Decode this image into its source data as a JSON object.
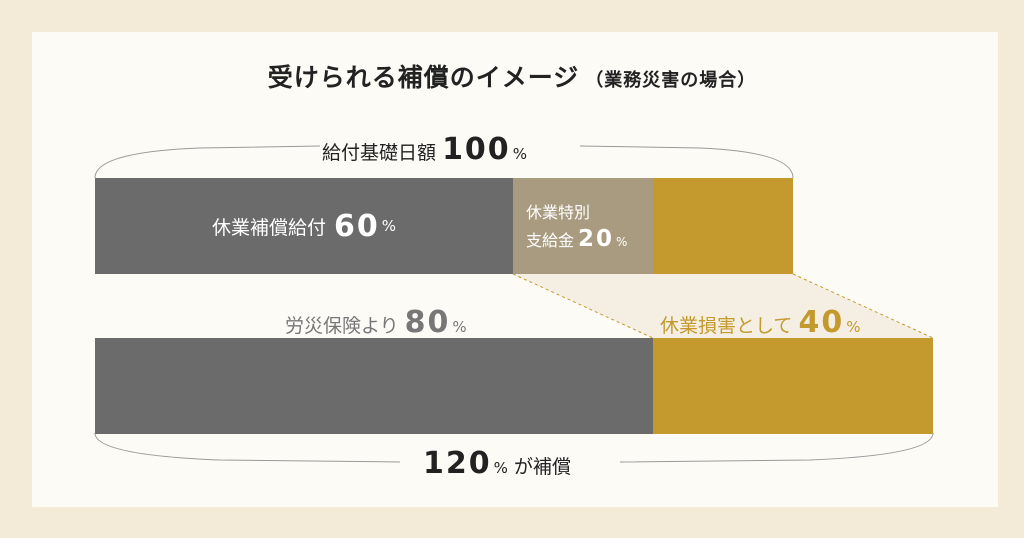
{
  "title": "受けられる補償のイメージ",
  "title_sub": "（業務災害の場合）",
  "base": {
    "label": "給付基礎日額",
    "value": "100",
    "unit": "%"
  },
  "top_bar": {
    "segments": [
      {
        "label": "休業補償給付",
        "value": "60",
        "unit": "%",
        "share": 60,
        "color": "#6b6b6b"
      },
      {
        "label_line1": "休業特別",
        "label_line2": "支給金",
        "value": "20",
        "unit": "%",
        "share": 20,
        "color": "#a89b80"
      },
      {
        "share": 20,
        "color": "#c49a2e"
      }
    ]
  },
  "bottom_bar": {
    "segments": [
      {
        "label": "労災保険より",
        "value": "80",
        "unit": "%",
        "share": 80,
        "color": "#6b6b6b"
      },
      {
        "label": "休業損害として",
        "value": "40",
        "unit": "%",
        "share": 40,
        "color": "#c49a2e"
      }
    ]
  },
  "total": {
    "value": "120",
    "unit": "%",
    "label": "が補償"
  },
  "colors": {
    "background": "#f3ead8",
    "panel": "#fdfbf6",
    "gray": "#6b6b6b",
    "taupe": "#a89b80",
    "gold": "#c49a2e",
    "gold_text": "#c49a2e"
  }
}
